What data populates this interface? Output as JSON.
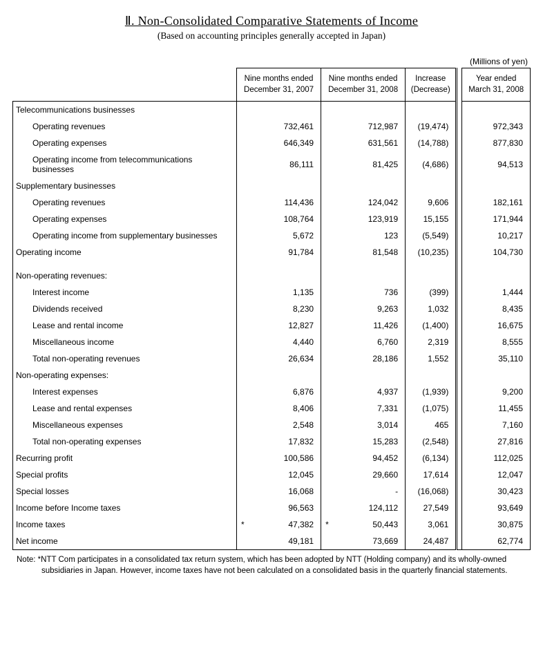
{
  "title": "Ⅱ. Non-Consolidated Comparative Statements of Income",
  "subtitle": "(Based on accounting principles generally accepted in Japan)",
  "unit": "(Millions of yen)",
  "columns": {
    "c1": "Nine months ended\nDecember 31, 2007",
    "c2": "Nine months ended\nDecember 31, 2008",
    "c3": "Increase\n(Decrease)",
    "c4": "Year ended\nMarch 31, 2008"
  },
  "rows": [
    {
      "type": "section",
      "label": "Telecommunications businesses",
      "c1": "",
      "c2": "",
      "c3": "",
      "c4": ""
    },
    {
      "type": "indent1",
      "label": "Operating revenues",
      "c1": "732,461",
      "c2": "712,987",
      "c3": "(19,474)",
      "c4": "972,343"
    },
    {
      "type": "indent1",
      "label": "Operating expenses",
      "c1": "646,349",
      "c2": "631,561",
      "c3": "(14,788)",
      "c4": "877,830"
    },
    {
      "type": "indent1",
      "label": "Operating income from telecommunications businesses",
      "c1": "86,111",
      "c2": "81,425",
      "c3": "(4,686)",
      "c4": "94,513"
    },
    {
      "type": "section",
      "label": "Supplementary businesses",
      "c1": "",
      "c2": "",
      "c3": "",
      "c4": ""
    },
    {
      "type": "indent1",
      "label": "Operating revenues",
      "c1": "114,436",
      "c2": "124,042",
      "c3": "9,606",
      "c4": "182,161"
    },
    {
      "type": "indent1",
      "label": "Operating expenses",
      "c1": "108,764",
      "c2": "123,919",
      "c3": "15,155",
      "c4": "171,944"
    },
    {
      "type": "indent1",
      "label": "Operating income from supplementary businesses",
      "c1": "5,672",
      "c2": "123",
      "c3": "(5,549)",
      "c4": "10,217"
    },
    {
      "type": "section",
      "label": "Operating income",
      "c1": "91,784",
      "c2": "81,548",
      "c3": "(10,235)",
      "c4": "104,730"
    },
    {
      "type": "spacer",
      "label": "",
      "c1": "",
      "c2": "",
      "c3": "",
      "c4": ""
    },
    {
      "type": "section",
      "label": "Non-operating revenues:",
      "c1": "",
      "c2": "",
      "c3": "",
      "c4": ""
    },
    {
      "type": "indent1",
      "label": "Interest income",
      "c1": "1,135",
      "c2": "736",
      "c3": "(399)",
      "c4": "1,444"
    },
    {
      "type": "indent1",
      "label": "Dividends received",
      "c1": "8,230",
      "c2": "9,263",
      "c3": "1,032",
      "c4": "8,435"
    },
    {
      "type": "indent1",
      "label": "Lease and rental income",
      "c1": "12,827",
      "c2": "11,426",
      "c3": "(1,400)",
      "c4": "16,675"
    },
    {
      "type": "indent1",
      "label": "Miscellaneous income",
      "c1": "4,440",
      "c2": "6,760",
      "c3": "2,319",
      "c4": "8,555"
    },
    {
      "type": "indent1",
      "label": "Total non-operating revenues",
      "c1": "26,634",
      "c2": "28,186",
      "c3": "1,552",
      "c4": "35,110"
    },
    {
      "type": "section",
      "label": "Non-operating expenses:",
      "c1": "",
      "c2": "",
      "c3": "",
      "c4": ""
    },
    {
      "type": "indent1",
      "label": "Interest expenses",
      "c1": "6,876",
      "c2": "4,937",
      "c3": "(1,939)",
      "c4": "9,200"
    },
    {
      "type": "indent1",
      "label": "Lease and rental expenses",
      "c1": "8,406",
      "c2": "7,331",
      "c3": "(1,075)",
      "c4": "11,455"
    },
    {
      "type": "indent1",
      "label": "Miscellaneous expenses",
      "c1": "2,548",
      "c2": "3,014",
      "c3": "465",
      "c4": "7,160"
    },
    {
      "type": "indent1",
      "label": "Total non-operating expenses",
      "c1": "17,832",
      "c2": "15,283",
      "c3": "(2,548)",
      "c4": "27,816"
    },
    {
      "type": "section",
      "label": "Recurring profit",
      "c1": "100,586",
      "c2": "94,452",
      "c3": "(6,134)",
      "c4": "112,025"
    },
    {
      "type": "section",
      "label": "Special profits",
      "c1": "12,045",
      "c2": "29,660",
      "c3": "17,614",
      "c4": "12,047"
    },
    {
      "type": "section",
      "label": "Special losses",
      "c1": "16,068",
      "c2": "-",
      "c3": "(16,068)",
      "c4": "30,423"
    },
    {
      "type": "section",
      "label": "Income before Income taxes",
      "c1": "96,563",
      "c2": "124,112",
      "c3": "27,549",
      "c4": "93,649"
    },
    {
      "type": "section",
      "label": "Income taxes",
      "c1": "47,382",
      "c2": "50,443",
      "c3": "3,061",
      "c4": "30,875",
      "ast1": true,
      "ast2": true
    },
    {
      "type": "section bottom",
      "label": "Net income",
      "c1": "49,181",
      "c2": "73,669",
      "c3": "24,487",
      "c4": "62,774"
    }
  ],
  "note_line1": "Note: *NTT Com participates in a consolidated tax return system, which has been adopted by NTT (Holding company) and its wholly-owned",
  "note_line2": "subsidiaries in Japan. However, income taxes have not been calculated on a consolidated basis in the quarterly financial statements."
}
